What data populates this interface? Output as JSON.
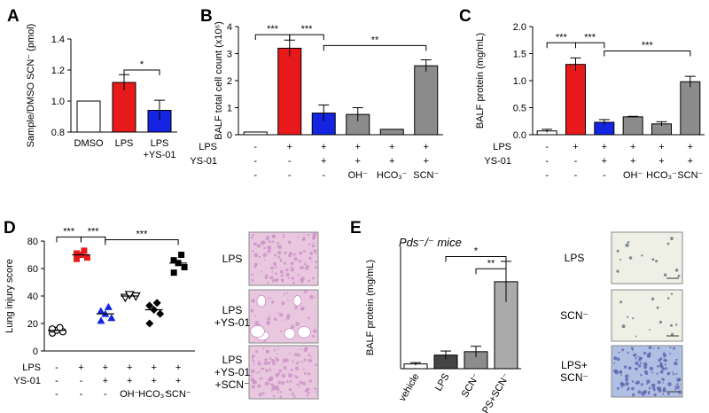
{
  "colors": {
    "white": "#ffffff",
    "red": "#e8191b",
    "blue": "#1424e0",
    "gray": "#8c8c8c",
    "dark": "#444444",
    "light": "#aaaaaa",
    "tissue_pink": "#e9c7df",
    "tissue_dark": "#c98fc6",
    "tissue_blue": "#b0bfe4",
    "tissue_bg": "#eef0e6"
  },
  "panels": {
    "a": "A",
    "b": "B",
    "c": "C",
    "d": "D",
    "e": "E"
  },
  "chart_data": [
    {
      "id": "A",
      "type": "bar",
      "ylabel": "Sample/DMSO SCN⁻ (pmol)",
      "yticks": [
        "0.8",
        "1.0",
        "1.2",
        "1.4"
      ],
      "yrange": [
        0.8,
        1.4
      ],
      "categories": [
        "DMSO",
        "LPS",
        "LPS +YS-01"
      ],
      "xlabels": [
        [
          "DMSO"
        ],
        [
          "LPS"
        ],
        [
          "LPS",
          "+YS-01"
        ]
      ],
      "values": [
        1.0,
        1.12,
        0.94
      ],
      "errors": [
        0,
        0.05,
        0.065
      ],
      "bar_colors": [
        "white",
        "red",
        "blue"
      ],
      "significance": [
        {
          "from": 1,
          "to": 2,
          "label": "*",
          "y": 1.2
        }
      ]
    },
    {
      "id": "B",
      "type": "bar",
      "ylabel": "BALF total cell count (x10⁶)",
      "yticks": [
        "0",
        "1",
        "2",
        "3",
        "4"
      ],
      "yrange": [
        0,
        4
      ],
      "values": [
        0.1,
        3.2,
        0.8,
        0.75,
        0.2,
        2.55
      ],
      "errors": [
        0,
        0.3,
        0.3,
        0.25,
        0,
        0.22
      ],
      "bar_colors": [
        "white",
        "red",
        "blue",
        "gray",
        "gray",
        "gray"
      ],
      "significance": [
        {
          "from": 0,
          "to": 1,
          "label": "***",
          "y": 3.7
        },
        {
          "from": 1,
          "to": 2,
          "label": "***",
          "y": 3.7
        },
        {
          "from": 2,
          "to": 5,
          "label": "**",
          "y": 3.3
        }
      ],
      "conditions": {
        "LPS": [
          "-",
          "+",
          "+",
          "+",
          "+",
          "+"
        ],
        "YS-01": [
          "-",
          "-",
          "+",
          "+",
          "+",
          "+"
        ],
        "anion": [
          "-",
          "-",
          "-",
          "OH⁻",
          "HCO₃⁻",
          "SCN⁻"
        ]
      }
    },
    {
      "id": "C",
      "type": "bar",
      "ylabel": "BALF protein (mg/mL)",
      "yticks": [
        "0.0",
        "0.5",
        "1.0",
        "1.5",
        "2.0"
      ],
      "yrange": [
        0,
        2.0
      ],
      "values": [
        0.07,
        1.3,
        0.23,
        0.33,
        0.2,
        0.98
      ],
      "errors": [
        0.03,
        0.12,
        0.05,
        0.01,
        0.04,
        0.1
      ],
      "bar_colors": [
        "white",
        "red",
        "blue",
        "gray",
        "gray",
        "gray"
      ],
      "significance": [
        {
          "from": 0,
          "to": 1,
          "label": "***",
          "y": 1.7
        },
        {
          "from": 1,
          "to": 2,
          "label": "***",
          "y": 1.7
        },
        {
          "from": 2,
          "to": 5,
          "label": "***",
          "y": 1.55
        }
      ],
      "conditions": {
        "LPS": [
          "-",
          "+",
          "+",
          "+",
          "+",
          "+"
        ],
        "YS-01": [
          "-",
          "-",
          "+",
          "+",
          "+",
          "+"
        ],
        "anion": [
          "-",
          "-",
          "-",
          "OH⁻",
          "HCO₃⁻",
          "SCN⁻"
        ]
      }
    },
    {
      "id": "D",
      "type": "scatter",
      "ylabel": "Lung injury score",
      "yticks": [
        "0",
        "20",
        "40",
        "60",
        "80"
      ],
      "yrange": [
        0,
        80
      ],
      "groups": [
        {
          "marker": "circle-open",
          "color": "black",
          "points": [
            13,
            14,
            15,
            16,
            17
          ],
          "mean": 15
        },
        {
          "marker": "square",
          "color": "red",
          "points": [
            67,
            68,
            70,
            71,
            73
          ],
          "mean": 70
        },
        {
          "marker": "triangle",
          "color": "blue",
          "points": [
            22,
            24,
            27,
            29,
            32
          ],
          "mean": 27
        },
        {
          "marker": "triangle-down-open",
          "color": "black",
          "points": [
            39,
            40,
            41
          ],
          "mean": 40
        },
        {
          "marker": "diamond",
          "color": "black",
          "points": [
            20,
            27,
            30,
            33,
            35
          ],
          "mean": 30
        },
        {
          "marker": "square",
          "color": "black",
          "points": [
            57,
            61,
            64,
            66,
            70
          ],
          "mean": 64
        }
      ],
      "significance": [
        {
          "from": 0,
          "to": 1,
          "label": "***",
          "y": 83
        },
        {
          "from": 1,
          "to": 2,
          "label": "***",
          "y": 83
        },
        {
          "from": 2,
          "to": 5,
          "label": "***",
          "y": 81
        }
      ],
      "conditions": {
        "LPS": [
          "-",
          "+",
          "+",
          "+",
          "+",
          "+"
        ],
        "YS-01": [
          "-",
          "-",
          "+",
          "+",
          "+",
          "+"
        ],
        "anion": [
          "-",
          "-",
          "-",
          "OH⁻",
          "HCO₃⁻",
          "SCN⁻"
        ]
      }
    },
    {
      "id": "E",
      "type": "bar",
      "title": "Pds⁻/⁻ mice",
      "ylabel": "BALF protein (mg/mL)",
      "yrange": [
        0,
        1.8
      ],
      "categories": [
        "vehicle",
        "LPS",
        "SCN⁻",
        "LPS+SCN⁻"
      ],
      "values": [
        0.07,
        0.2,
        0.25,
        1.28
      ],
      "errors": [
        0.02,
        0.06,
        0.08,
        0.3
      ],
      "bar_colors": [
        "white",
        "dark",
        "gray",
        "light"
      ],
      "significance": [
        {
          "from": 1,
          "to": 3,
          "label": "*",
          "y": 1.65
        },
        {
          "from": 2,
          "to": 3,
          "label": "**",
          "y": 1.47
        }
      ]
    }
  ],
  "row_labels": {
    "lps": "LPS",
    "ys01": "YS-01"
  },
  "histology_d": [
    {
      "lines": [
        "LPS"
      ]
    },
    {
      "lines": [
        "LPS",
        "+YS-01"
      ]
    },
    {
      "lines": [
        "LPS",
        "+YS-01",
        "+SCN⁻"
      ]
    }
  ],
  "histology_e": [
    {
      "lines": [
        "LPS"
      ]
    },
    {
      "lines": [
        "SCN⁻"
      ]
    },
    {
      "lines": [
        "LPS+",
        "SCN⁻"
      ]
    }
  ]
}
